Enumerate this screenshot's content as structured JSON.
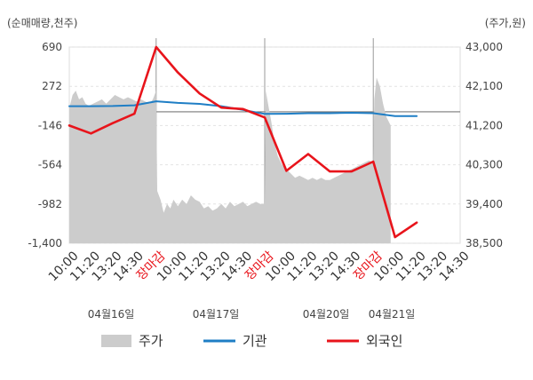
{
  "chart_data": {
    "type": "line",
    "left_unit_label": "(순매매량,천주)",
    "right_unit_label": "(주가,원)",
    "left_axis": {
      "ticks": [
        "690",
        "272",
        "-146",
        "-564",
        "-982",
        "-1,400"
      ],
      "ylim": [
        -1400,
        690
      ]
    },
    "right_axis": {
      "ticks": [
        "43,000",
        "42,100",
        "41,200",
        "40,300",
        "39,400",
        "38,500"
      ],
      "ylim": [
        38500,
        43000
      ]
    },
    "x_tick_labels": [
      "10:00",
      "11:20",
      "13:20",
      "14:30",
      "장마감",
      "10:00",
      "11:20",
      "13:20",
      "14:30",
      "장마감",
      "10:00",
      "11:20",
      "13:20",
      "14:30",
      "장마감",
      "10:00",
      "11:20",
      "13:20",
      "14:30"
    ],
    "x_tick_colors": [
      "#333333",
      "#333333",
      "#333333",
      "#333333",
      "#e8141b",
      "#333333",
      "#333333",
      "#333333",
      "#333333",
      "#e8141b",
      "#333333",
      "#333333",
      "#333333",
      "#333333",
      "#e8141b",
      "#333333",
      "#333333",
      "#333333",
      "#333333"
    ],
    "dates": [
      "04월16일",
      "04월17일",
      "04월20일",
      "04월21일"
    ],
    "x_count": 19,
    "day_boundaries": [
      4,
      9,
      14
    ],
    "price_series": {
      "name": "주가",
      "color": "#cccccc",
      "points": [
        [
          0.0,
          41600
        ],
        [
          0.15,
          41900
        ],
        [
          0.3,
          42000
        ],
        [
          0.45,
          41800
        ],
        [
          0.6,
          41850
        ],
        [
          0.75,
          41700
        ],
        [
          0.9,
          41650
        ],
        [
          1.1,
          41700
        ],
        [
          1.3,
          41750
        ],
        [
          1.5,
          41800
        ],
        [
          1.7,
          41700
        ],
        [
          1.9,
          41800
        ],
        [
          2.1,
          41900
        ],
        [
          2.3,
          41850
        ],
        [
          2.5,
          41800
        ],
        [
          2.7,
          41850
        ],
        [
          2.9,
          41800
        ],
        [
          3.1,
          41750
        ],
        [
          3.3,
          41800
        ],
        [
          3.5,
          41750
        ],
        [
          3.7,
          41700
        ],
        [
          3.85,
          41800
        ],
        [
          4.0,
          42000
        ],
        [
          4.05,
          39700
        ],
        [
          4.2,
          39500
        ],
        [
          4.35,
          39200
        ],
        [
          4.5,
          39400
        ],
        [
          4.65,
          39300
        ],
        [
          4.8,
          39500
        ],
        [
          5.0,
          39350
        ],
        [
          5.2,
          39500
        ],
        [
          5.4,
          39400
        ],
        [
          5.6,
          39600
        ],
        [
          5.8,
          39500
        ],
        [
          6.0,
          39450
        ],
        [
          6.2,
          39300
        ],
        [
          6.4,
          39350
        ],
        [
          6.6,
          39250
        ],
        [
          6.8,
          39300
        ],
        [
          7.0,
          39400
        ],
        [
          7.2,
          39300
        ],
        [
          7.4,
          39450
        ],
        [
          7.6,
          39350
        ],
        [
          7.8,
          39400
        ],
        [
          8.0,
          39450
        ],
        [
          8.2,
          39350
        ],
        [
          8.4,
          39400
        ],
        [
          8.6,
          39450
        ],
        [
          8.8,
          39400
        ],
        [
          9.0,
          39400
        ],
        [
          9.05,
          42000
        ],
        [
          9.15,
          41700
        ],
        [
          9.3,
          41300
        ],
        [
          9.45,
          40800
        ],
        [
          9.6,
          40500
        ],
        [
          9.8,
          40300
        ],
        [
          10.0,
          40200
        ],
        [
          10.2,
          40100
        ],
        [
          10.4,
          40000
        ],
        [
          10.6,
          40050
        ],
        [
          10.8,
          40000
        ],
        [
          11.0,
          39950
        ],
        [
          11.2,
          40000
        ],
        [
          11.4,
          39950
        ],
        [
          11.6,
          40000
        ],
        [
          11.8,
          39950
        ],
        [
          12.0,
          39950
        ],
        [
          12.2,
          40000
        ],
        [
          12.4,
          40050
        ],
        [
          12.6,
          40100
        ],
        [
          12.8,
          40150
        ],
        [
          13.0,
          40200
        ],
        [
          13.2,
          40250
        ],
        [
          13.4,
          40300
        ],
        [
          13.6,
          40350
        ],
        [
          13.8,
          40400
        ],
        [
          14.0,
          40350
        ],
        [
          14.05,
          41800
        ],
        [
          14.15,
          42300
        ],
        [
          14.3,
          42100
        ],
        [
          14.45,
          41700
        ],
        [
          14.6,
          41400
        ],
        [
          14.8,
          41200
        ]
      ]
    },
    "series": [
      {
        "name": "기관",
        "color": "#1f7ec5",
        "points": [
          [
            0.0,
            60
          ],
          [
            1.0,
            60
          ],
          [
            2.0,
            62
          ],
          [
            3.0,
            70
          ],
          [
            4.0,
            112
          ],
          [
            5.0,
            95
          ],
          [
            6.0,
            85
          ],
          [
            7.0,
            60
          ],
          [
            8.0,
            20
          ],
          [
            9.0,
            -22
          ],
          [
            10.0,
            -20
          ],
          [
            11.0,
            -15
          ],
          [
            12.0,
            -15
          ],
          [
            13.0,
            -10
          ],
          [
            14.0,
            -15
          ],
          [
            15.0,
            -45
          ],
          [
            16.0,
            -45
          ]
        ]
      },
      {
        "name": "외국인",
        "color": "#e8141b",
        "points": [
          [
            0.0,
            -146
          ],
          [
            1.0,
            -230
          ],
          [
            2.0,
            -120
          ],
          [
            3.0,
            -20
          ],
          [
            4.0,
            690
          ],
          [
            5.0,
            420
          ],
          [
            6.0,
            195
          ],
          [
            7.0,
            45
          ],
          [
            8.0,
            30
          ],
          [
            9.0,
            -60
          ],
          [
            10.0,
            -628
          ],
          [
            11.0,
            -450
          ],
          [
            12.0,
            -635
          ],
          [
            13.0,
            -635
          ],
          [
            14.0,
            -530
          ],
          [
            15.0,
            -1335
          ],
          [
            16.0,
            -1180
          ]
        ]
      }
    ],
    "grid": true
  }
}
